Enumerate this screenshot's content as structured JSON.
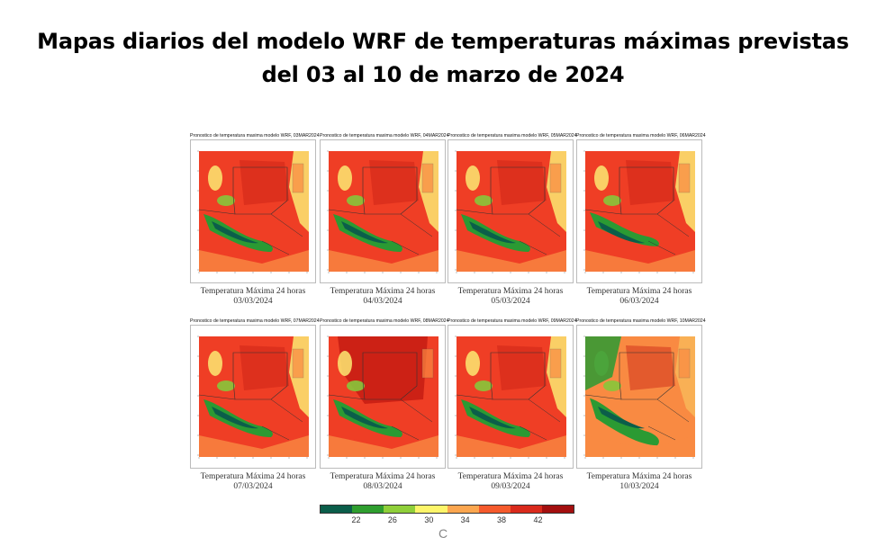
{
  "page": {
    "title_line1": "Mapas diarios del modelo WRF de temperaturas máximas previstas",
    "title_line2": "del 03 al 10 de marzo de 2024"
  },
  "maps": [
    {
      "header": "Pronostico de temperatura maxima modelo WRF, 03MAR2024",
      "caption_line1": "Temperatura Máxima 24 horas",
      "caption_line2": "03/03/2024",
      "variant": 0
    },
    {
      "header": "Pronostico de temperatura maxima modelo WRF, 04MAR2024",
      "caption_line1": "Temperatura Máxima 24 horas",
      "caption_line2": "04/03/2024",
      "variant": 1
    },
    {
      "header": "Pronostico de temperatura maxima modelo WRF, 05MAR2024",
      "caption_line1": "Temperatura Máxima 24 horas",
      "caption_line2": "05/03/2024",
      "variant": 2
    },
    {
      "header": "Pronostico de temperatura maxima modelo WRF, 06MAR2024",
      "caption_line1": "Temperatura Máxima 24 horas",
      "caption_line2": "06/03/2024",
      "variant": 3
    },
    {
      "header": "Pronostico de temperatura maxima modelo WRF, 07MAR2024",
      "caption_line1": "Temperatura Máxima 24 horas",
      "caption_line2": "07/03/2024",
      "variant": 4
    },
    {
      "header": "Pronostico de temperatura maxima modelo WRF, 08MAR2024",
      "caption_line1": "Temperatura Máxima 24 horas",
      "caption_line2": "08/03/2024",
      "variant": 5
    },
    {
      "header": "Pronostico de temperatura maxima modelo WRF, 09MAR2024",
      "caption_line1": "Temperatura Máxima 24 horas",
      "caption_line2": "09/03/2024",
      "variant": 6
    },
    {
      "header": "Pronostico de temperatura maxima modelo WRF, 10MAR2024",
      "caption_line1": "Temperatura Máxima 24 horas",
      "caption_line2": "10/03/2024",
      "variant": 7
    }
  ],
  "colorbar": {
    "ticks": [
      "22",
      "26",
      "30",
      "34",
      "38",
      "42"
    ],
    "unit": "C",
    "colors": [
      "#0b5e4a",
      "#2f9e2f",
      "#8fcf3a",
      "#fdf56a",
      "#fca64f",
      "#f55a2c",
      "#d92a1c",
      "#a30f0f"
    ]
  },
  "palette": {
    "very_hot": "#c81e14",
    "hot": "#ef3e25",
    "warm": "#f98a42",
    "mild": "#fbe972",
    "cool": "#86c63b",
    "cooler": "#2b9a33",
    "cold": "#0b5e4a"
  }
}
